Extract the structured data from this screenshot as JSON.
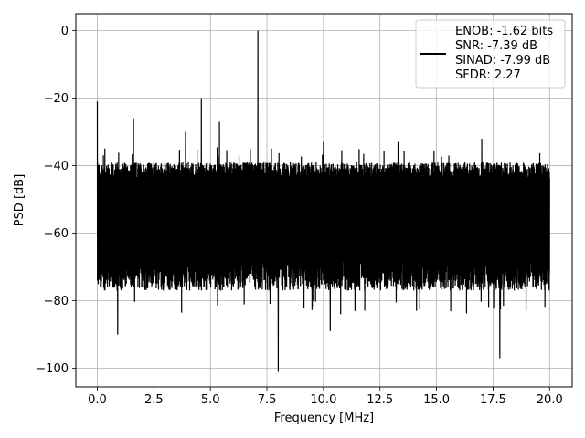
{
  "chart_data": {
    "type": "line",
    "title": "",
    "xlabel": "Frequency [MHz]",
    "ylabel": "PSD [dB]",
    "xlim": [
      -0.95,
      21.0
    ],
    "ylim": [
      -105.5,
      5.0
    ],
    "xticks": [
      0.0,
      2.5,
      5.0,
      7.5,
      10.0,
      12.5,
      15.0,
      17.5,
      20.0
    ],
    "xtick_labels": [
      "0.0",
      "2.5",
      "5.0",
      "7.5",
      "10.0",
      "12.5",
      "15.0",
      "17.5",
      "20.0"
    ],
    "yticks": [
      0,
      -20,
      -40,
      -60,
      -80,
      -100
    ],
    "ytick_labels": [
      "0",
      "−20",
      "−40",
      "−60",
      "−80",
      "−100"
    ],
    "grid": true,
    "legend_position": "top-right",
    "series": [
      {
        "name": "",
        "color": "#000000",
        "noise_floor_db": {
          "upper": -42,
          "lower": -72,
          "extreme_upper": -36,
          "extreme_lower": -82
        },
        "peaks": [
          {
            "x": 0.0,
            "y": -21
          },
          {
            "x": 1.6,
            "y": -26
          },
          {
            "x": 3.9,
            "y": -30
          },
          {
            "x": 4.6,
            "y": -20
          },
          {
            "x": 5.4,
            "y": -27
          },
          {
            "x": 7.1,
            "y": 0
          },
          {
            "x": 10.0,
            "y": -33
          },
          {
            "x": 13.3,
            "y": -33
          },
          {
            "x": 17.0,
            "y": -32
          }
        ],
        "dips": [
          {
            "x": 0.9,
            "y": -90
          },
          {
            "x": 3.9,
            "y": -89
          },
          {
            "x": 8.0,
            "y": -101
          },
          {
            "x": 10.3,
            "y": -89
          },
          {
            "x": 17.8,
            "y": -97
          }
        ]
      }
    ],
    "legend": {
      "entries": [
        "ENOB: -1.62 bits",
        "SNR: -7.39 dB",
        "SINAD: -7.99 dB",
        "SFDR: 2.27"
      ],
      "line_color": "#000000"
    }
  }
}
